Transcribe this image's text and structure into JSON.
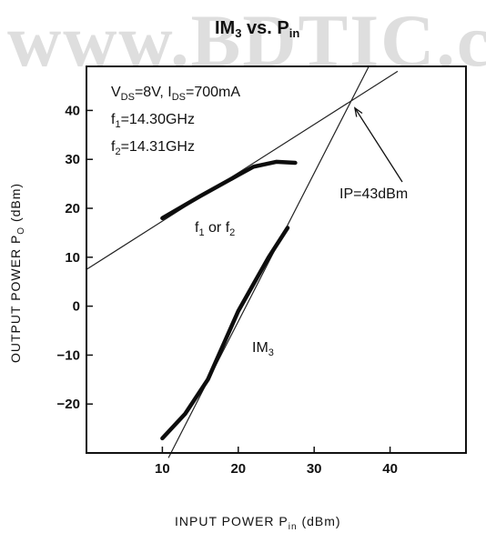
{
  "watermark": "www.BDTIC.com",
  "title": {
    "main": "IM",
    "main_sub": "3",
    "mid": " vs. P",
    "end_sub": "in"
  },
  "chart_data": {
    "type": "line",
    "xlabel": "INPUT POWER P",
    "xlabel_sub": "in",
    "xlabel_unit": " (dBm)",
    "ylabel": "OUTPUT POWER P",
    "ylabel_sub": "O",
    "ylabel_unit": " (dBm)",
    "xlim": [
      0,
      50
    ],
    "ylim": [
      -30,
      49
    ],
    "xticks": [
      10,
      20,
      30,
      40
    ],
    "yticks": [
      40,
      30,
      20,
      10,
      0,
      -10,
      -20
    ],
    "ytick_labels": [
      "40",
      "30",
      "20",
      "10",
      "0",
      "−10",
      "−20"
    ],
    "series": [
      {
        "name": "f1 or f2",
        "x": [
          10,
          15,
          20,
          22,
          25,
          27.5
        ],
        "y": [
          18.0,
          22.5,
          26.8,
          28.5,
          29.5,
          29.3
        ]
      },
      {
        "name": "IM3",
        "x": [
          10,
          13,
          16,
          18,
          20,
          22,
          24,
          26.5
        ],
        "y": [
          -27,
          -22,
          -15,
          -8,
          -1,
          4.5,
          10,
          16
        ]
      }
    ],
    "reference_lines": [
      {
        "name": "1:1 extrapolation",
        "x": [
          0,
          41
        ],
        "y": [
          7.5,
          48
        ]
      },
      {
        "name": "3:1 extrapolation",
        "x": [
          10.8,
          37.2
        ],
        "y": [
          -31,
          49
        ]
      }
    ],
    "intercept": {
      "x": 35,
      "y": 42
    }
  },
  "annotations": {
    "conditions_v": "V",
    "conditions_v_sub": "DS",
    "conditions_v_val": "=8V,  I",
    "conditions_i_sub": "DS",
    "conditions_i_val": "=700mA",
    "f1_label": "f",
    "f1_sub": "1",
    "f1_val": "=14.30GHz",
    "f2_label": "f",
    "f2_sub": "2",
    "f2_val": "=14.31GHz",
    "ip": "IP=43dBm",
    "fundamental_a": "f",
    "fundamental_a_sub": "1",
    "fundamental_mid": " or  f",
    "fundamental_b_sub": "2",
    "im3": "IM",
    "im3_sub": "3"
  }
}
